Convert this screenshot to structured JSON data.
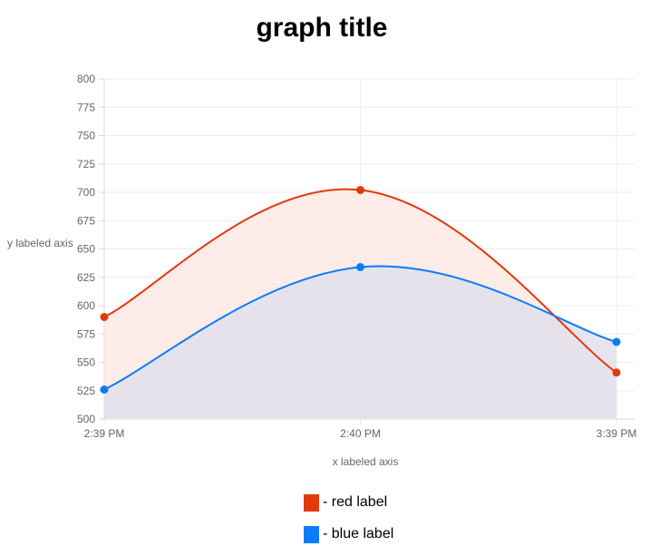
{
  "chart_data": {
    "type": "area",
    "title": "graph title",
    "xlabel": "x labeled axis",
    "ylabel": "y labeled axis",
    "categories": [
      "2:39 PM",
      "2:40 PM",
      "3:39 PM"
    ],
    "ylim": [
      500,
      800
    ],
    "yticks": [
      500,
      525,
      550,
      575,
      600,
      625,
      650,
      675,
      700,
      725,
      750,
      775,
      800
    ],
    "grid": true,
    "legend_position": "bottom",
    "series": [
      {
        "name": "red label",
        "values": [
          590,
          702,
          541
        ],
        "color": "#e23a0c",
        "fill": "#fde9e3"
      },
      {
        "name": "blue label",
        "values": [
          526,
          634,
          568
        ],
        "color": "#0a7bfb",
        "fill": "#e2e0ec"
      }
    ]
  },
  "legend": {
    "items": [
      {
        "text": "- red label",
        "color": "#e23a0c"
      },
      {
        "text": "- blue label",
        "color": "#0a7bfb"
      }
    ]
  }
}
